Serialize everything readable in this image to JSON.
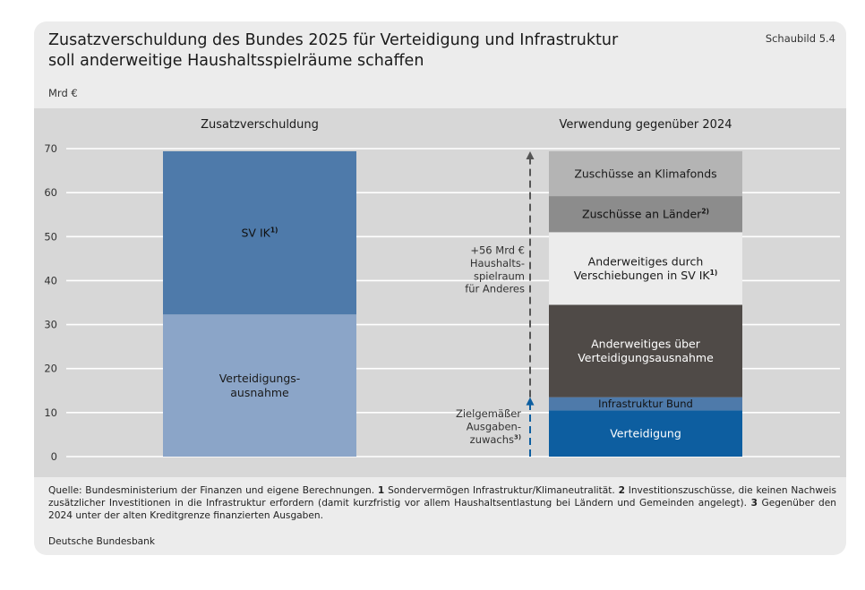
{
  "header": {
    "title_line1": "Zusatzverschuldung des Bundes 2025 für Verteidigung und Infrastruktur",
    "title_line2": "soll anderweitige Haushaltsspielräume schaffen",
    "badge": "Schaubild 5.4",
    "unit": "Mrd €"
  },
  "chart_data": {
    "type": "bar",
    "stacked": true,
    "ylim": [
      0,
      70
    ],
    "yticks": [
      0,
      10,
      20,
      30,
      40,
      50,
      60,
      70
    ],
    "grid": true,
    "categories": [
      "Zusatzverschuldung",
      "Verwendung gegenüber 2024"
    ],
    "series": [
      {
        "name": "Verteidigungsausnahme",
        "label": [
          "Verteidigungs-",
          "ausnahme"
        ],
        "color": "#8ba5c8",
        "text_color": "#1a1a1a",
        "category": 0,
        "base": 0,
        "value": 32.3
      },
      {
        "name": "SV IK",
        "label": [
          "SV IK"
        ],
        "sup": "1)",
        "color": "#4e7aaa",
        "text_color": "#111111",
        "category": 0,
        "base": 32.3,
        "value": 37.1
      },
      {
        "name": "Verteidigung",
        "label": [
          "Verteidigung"
        ],
        "color": "#0d5ea0",
        "text_color": "#ffffff",
        "category": 1,
        "base": 0,
        "value": 10.5
      },
      {
        "name": "Infrastruktur Bund",
        "label": [
          "Infrastruktur Bund"
        ],
        "color": "#4e7aaa",
        "text_color": "#111111",
        "category": 1,
        "base": 10.5,
        "value": 3.0
      },
      {
        "name": "Anderweitiges über Verteidigungsausnahme",
        "label": [
          "Anderweitiges über",
          "Verteidigungsausnahme"
        ],
        "color": "#4f4a47",
        "text_color": "#ffffff",
        "category": 1,
        "base": 13.5,
        "value": 21.0
      },
      {
        "name": "Anderweitiges durch Verschiebungen in SV IK",
        "label": [
          "Anderweitiges durch",
          "Verschiebungen in SV IK"
        ],
        "sup": "1)",
        "color": "#ececec",
        "text_color": "#1a1a1a",
        "category": 1,
        "base": 34.5,
        "value": 16.5
      },
      {
        "name": "Zuschüsse an Länder",
        "label": [
          "Zuschüsse an Länder"
        ],
        "sup": "2)",
        "color": "#8c8c8c",
        "text_color": "#111111",
        "category": 1,
        "base": 51.0,
        "value": 8.2
      },
      {
        "name": "Zuschüsse an Klimafonds",
        "label": [
          "Zuschüsse an Klimafonds"
        ],
        "color": "#b4b4b4",
        "text_color": "#1a1a1a",
        "category": 1,
        "base": 59.2,
        "value": 10.2
      }
    ],
    "annotations": [
      {
        "name": "haushaltsspielraum",
        "lines": [
          "+56 Mrd €",
          "Haushalts-",
          "spiel­raum",
          "für Anderes"
        ],
        "from": 13.5,
        "to": 69.4,
        "arrow_color": "#555555"
      },
      {
        "name": "ausgabenzuwachs",
        "lines": [
          "Zielgemäßer",
          "Ausgaben-",
          "zuwachs"
        ],
        "sup": "3)",
        "from": 0,
        "to": 13.5,
        "arrow_color": "#0d5ea0"
      }
    ]
  },
  "notes": {
    "source_lead": "Quelle: Bundesministerium der Finanzen und eigene Berechnungen. ",
    "n1_num": "1",
    "n1_text": " Sondervermögen Infrastruktur/Klimaneutralität. ",
    "n2_num": "2",
    "n2_text": " Investitionszuschüsse, die keinen Nachweis zusätzlicher Investitionen in die Infrastruktur erfordern (damit kurzfristig vor allem Haushaltsentlastung bei Ländern und Gemeinden angelegt). ",
    "n3_num": "3",
    "n3_text": " Gegenüber den 2024 unter der alten Kreditgrenze finanzierten Ausgaben.",
    "publisher": "Deutsche Bundesbank"
  }
}
